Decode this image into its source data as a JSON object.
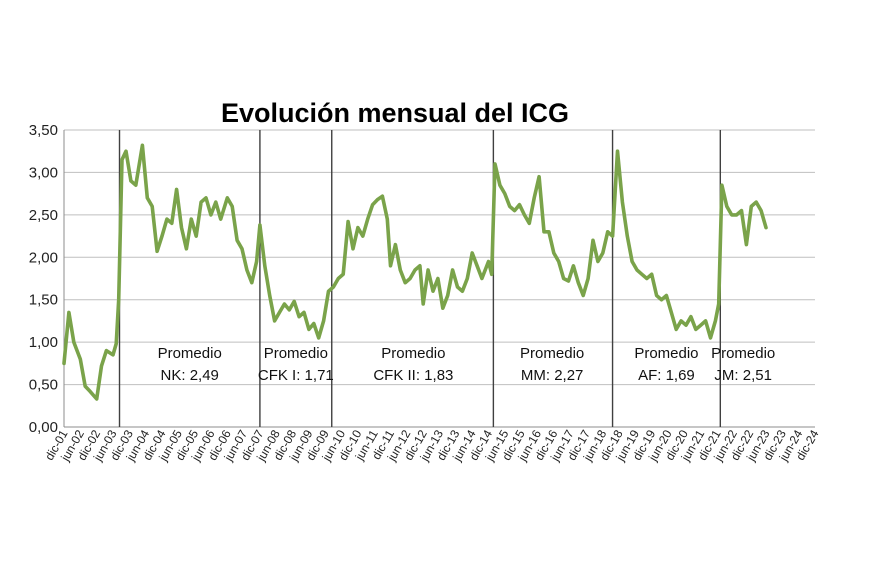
{
  "chart_data": {
    "type": "line",
    "title": "Evolución mensual del ICG",
    "xlabel": "",
    "ylabel": "",
    "ylim": [
      0,
      3.5
    ],
    "grid": true,
    "legend": "none",
    "y_ticks": [
      "0,00",
      "0,50",
      "1,00",
      "1,50",
      "2,00",
      "2,50",
      "3,00",
      "3,50"
    ],
    "x_ticks": [
      "dic-01",
      "jun-02",
      "dic-02",
      "jun-03",
      "dic-03",
      "jun-04",
      "dic-04",
      "jun-05",
      "dic-05",
      "jun-06",
      "dic-06",
      "jun-07",
      "dic-07",
      "jun-08",
      "dic-08",
      "jun-09",
      "dic-09",
      "jun-10",
      "dic-10",
      "jun-11",
      "dic-11",
      "jun-12",
      "dic-12",
      "jun-13",
      "dic-13",
      "jun-14",
      "dic-14",
      "jun-15",
      "dic-15",
      "jun-16",
      "dic-16",
      "jun-17",
      "dic-17",
      "jun-18",
      "dic-18",
      "jun-19",
      "dic-19",
      "jun-20",
      "dic-20",
      "jun-21",
      "dic-21",
      "jun-22",
      "dic-22",
      "jun-23",
      "dic-23",
      "jun-24",
      "dic-24"
    ],
    "series": [
      {
        "color": "#7aa34a",
        "points": [
          {
            "x": 0,
            "y": 0.75
          },
          {
            "x": 0.3,
            "y": 1.35
          },
          {
            "x": 0.6,
            "y": 1.0
          },
          {
            "x": 1.0,
            "y": 0.8
          },
          {
            "x": 1.3,
            "y": 0.48
          },
          {
            "x": 1.6,
            "y": 0.42
          },
          {
            "x": 2.0,
            "y": 0.33
          },
          {
            "x": 2.3,
            "y": 0.72
          },
          {
            "x": 2.6,
            "y": 0.9
          },
          {
            "x": 3.0,
            "y": 0.85
          },
          {
            "x": 3.2,
            "y": 0.98
          },
          {
            "x": 3.35,
            "y": 1.5
          },
          {
            "x": 3.55,
            "y": 3.15
          },
          {
            "x": 3.8,
            "y": 3.25
          },
          {
            "x": 4.1,
            "y": 2.9
          },
          {
            "x": 4.4,
            "y": 2.85
          },
          {
            "x": 4.8,
            "y": 3.32
          },
          {
            "x": 5.1,
            "y": 2.7
          },
          {
            "x": 5.4,
            "y": 2.6
          },
          {
            "x": 5.7,
            "y": 2.07
          },
          {
            "x": 6.0,
            "y": 2.25
          },
          {
            "x": 6.3,
            "y": 2.45
          },
          {
            "x": 6.6,
            "y": 2.4
          },
          {
            "x": 6.9,
            "y": 2.8
          },
          {
            "x": 7.2,
            "y": 2.35
          },
          {
            "x": 7.5,
            "y": 2.1
          },
          {
            "x": 7.8,
            "y": 2.45
          },
          {
            "x": 8.1,
            "y": 2.25
          },
          {
            "x": 8.4,
            "y": 2.65
          },
          {
            "x": 8.7,
            "y": 2.7
          },
          {
            "x": 9.0,
            "y": 2.5
          },
          {
            "x": 9.3,
            "y": 2.65
          },
          {
            "x": 9.6,
            "y": 2.45
          },
          {
            "x": 10.0,
            "y": 2.7
          },
          {
            "x": 10.3,
            "y": 2.6
          },
          {
            "x": 10.6,
            "y": 2.2
          },
          {
            "x": 10.9,
            "y": 2.1
          },
          {
            "x": 11.2,
            "y": 1.85
          },
          {
            "x": 11.5,
            "y": 1.7
          },
          {
            "x": 11.8,
            "y": 1.95
          },
          {
            "x": 12.0,
            "y": 2.38
          },
          {
            "x": 12.3,
            "y": 1.9
          },
          {
            "x": 12.6,
            "y": 1.55
          },
          {
            "x": 12.9,
            "y": 1.25
          },
          {
            "x": 13.2,
            "y": 1.35
          },
          {
            "x": 13.5,
            "y": 1.45
          },
          {
            "x": 13.8,
            "y": 1.38
          },
          {
            "x": 14.1,
            "y": 1.48
          },
          {
            "x": 14.4,
            "y": 1.3
          },
          {
            "x": 14.7,
            "y": 1.35
          },
          {
            "x": 15.0,
            "y": 1.15
          },
          {
            "x": 15.3,
            "y": 1.22
          },
          {
            "x": 15.6,
            "y": 1.05
          },
          {
            "x": 15.9,
            "y": 1.25
          },
          {
            "x": 16.2,
            "y": 1.6
          },
          {
            "x": 16.5,
            "y": 1.65
          },
          {
            "x": 16.8,
            "y": 1.75
          },
          {
            "x": 17.1,
            "y": 1.8
          },
          {
            "x": 17.4,
            "y": 2.42
          },
          {
            "x": 17.7,
            "y": 2.1
          },
          {
            "x": 18.0,
            "y": 2.35
          },
          {
            "x": 18.3,
            "y": 2.25
          },
          {
            "x": 18.6,
            "y": 2.45
          },
          {
            "x": 18.9,
            "y": 2.62
          },
          {
            "x": 19.2,
            "y": 2.68
          },
          {
            "x": 19.5,
            "y": 2.72
          },
          {
            "x": 19.8,
            "y": 2.45
          },
          {
            "x": 20.0,
            "y": 1.9
          },
          {
            "x": 20.3,
            "y": 2.15
          },
          {
            "x": 20.6,
            "y": 1.85
          },
          {
            "x": 20.9,
            "y": 1.7
          },
          {
            "x": 21.2,
            "y": 1.75
          },
          {
            "x": 21.5,
            "y": 1.85
          },
          {
            "x": 21.8,
            "y": 1.9
          },
          {
            "x": 22.0,
            "y": 1.45
          },
          {
            "x": 22.3,
            "y": 1.85
          },
          {
            "x": 22.6,
            "y": 1.6
          },
          {
            "x": 22.9,
            "y": 1.75
          },
          {
            "x": 23.2,
            "y": 1.4
          },
          {
            "x": 23.5,
            "y": 1.55
          },
          {
            "x": 23.8,
            "y": 1.85
          },
          {
            "x": 24.1,
            "y": 1.65
          },
          {
            "x": 24.4,
            "y": 1.6
          },
          {
            "x": 24.7,
            "y": 1.75
          },
          {
            "x": 25.0,
            "y": 2.05
          },
          {
            "x": 25.3,
            "y": 1.9
          },
          {
            "x": 25.6,
            "y": 1.75
          },
          {
            "x": 26.0,
            "y": 1.95
          },
          {
            "x": 26.2,
            "y": 1.8
          },
          {
            "x": 26.4,
            "y": 3.1
          },
          {
            "x": 26.7,
            "y": 2.85
          },
          {
            "x": 27.0,
            "y": 2.75
          },
          {
            "x": 27.3,
            "y": 2.6
          },
          {
            "x": 27.6,
            "y": 2.55
          },
          {
            "x": 27.9,
            "y": 2.62
          },
          {
            "x": 28.2,
            "y": 2.5
          },
          {
            "x": 28.5,
            "y": 2.4
          },
          {
            "x": 28.8,
            "y": 2.7
          },
          {
            "x": 29.1,
            "y": 2.95
          },
          {
            "x": 29.4,
            "y": 2.3
          },
          {
            "x": 29.7,
            "y": 2.3
          },
          {
            "x": 30.0,
            "y": 2.05
          },
          {
            "x": 30.3,
            "y": 1.95
          },
          {
            "x": 30.6,
            "y": 1.75
          },
          {
            "x": 30.9,
            "y": 1.72
          },
          {
            "x": 31.2,
            "y": 1.9
          },
          {
            "x": 31.5,
            "y": 1.7
          },
          {
            "x": 31.8,
            "y": 1.55
          },
          {
            "x": 32.1,
            "y": 1.75
          },
          {
            "x": 32.4,
            "y": 2.2
          },
          {
            "x": 32.7,
            "y": 1.95
          },
          {
            "x": 33.0,
            "y": 2.05
          },
          {
            "x": 33.3,
            "y": 2.3
          },
          {
            "x": 33.6,
            "y": 2.25
          },
          {
            "x": 33.9,
            "y": 3.25
          },
          {
            "x": 34.2,
            "y": 2.65
          },
          {
            "x": 34.5,
            "y": 2.25
          },
          {
            "x": 34.8,
            "y": 1.95
          },
          {
            "x": 35.1,
            "y": 1.85
          },
          {
            "x": 35.4,
            "y": 1.8
          },
          {
            "x": 35.7,
            "y": 1.75
          },
          {
            "x": 36.0,
            "y": 1.8
          },
          {
            "x": 36.3,
            "y": 1.55
          },
          {
            "x": 36.6,
            "y": 1.5
          },
          {
            "x": 36.9,
            "y": 1.55
          },
          {
            "x": 37.2,
            "y": 1.35
          },
          {
            "x": 37.5,
            "y": 1.15
          },
          {
            "x": 37.8,
            "y": 1.25
          },
          {
            "x": 38.1,
            "y": 1.2
          },
          {
            "x": 38.4,
            "y": 1.3
          },
          {
            "x": 38.7,
            "y": 1.15
          },
          {
            "x": 39.0,
            "y": 1.2
          },
          {
            "x": 39.3,
            "y": 1.25
          },
          {
            "x": 39.6,
            "y": 1.05
          },
          {
            "x": 39.9,
            "y": 1.25
          },
          {
            "x": 40.1,
            "y": 1.45
          },
          {
            "x": 40.3,
            "y": 2.85
          },
          {
            "x": 40.6,
            "y": 2.6
          },
          {
            "x": 40.9,
            "y": 2.5
          },
          {
            "x": 41.2,
            "y": 2.5
          },
          {
            "x": 41.5,
            "y": 2.55
          },
          {
            "x": 41.8,
            "y": 2.15
          },
          {
            "x": 42.1,
            "y": 2.6
          },
          {
            "x": 42.4,
            "y": 2.65
          },
          {
            "x": 42.7,
            "y": 2.55
          },
          {
            "x": 43.0,
            "y": 2.35
          }
        ]
      }
    ],
    "dividers": [
      3.4,
      12.0,
      16.4,
      26.3,
      33.6,
      40.2
    ],
    "annotations": [
      {
        "line1": "Promedio",
        "line2": "NK: 2,49",
        "x_center": 7.7
      },
      {
        "line1": "Promedio",
        "line2": "CFK I: 1,71",
        "x_center": 14.2
      },
      {
        "line1": "Promedio",
        "line2": "CFK II: 1,83",
        "x_center": 21.4
      },
      {
        "line1": "Promedio",
        "line2": "MM: 2,27",
        "x_center": 29.9
      },
      {
        "line1": "Promedio",
        "line2": "AF: 1,69",
        "x_center": 36.9
      },
      {
        "line1": "Promedio",
        "line2": "JM: 2,51",
        "x_center": 41.6
      }
    ]
  }
}
